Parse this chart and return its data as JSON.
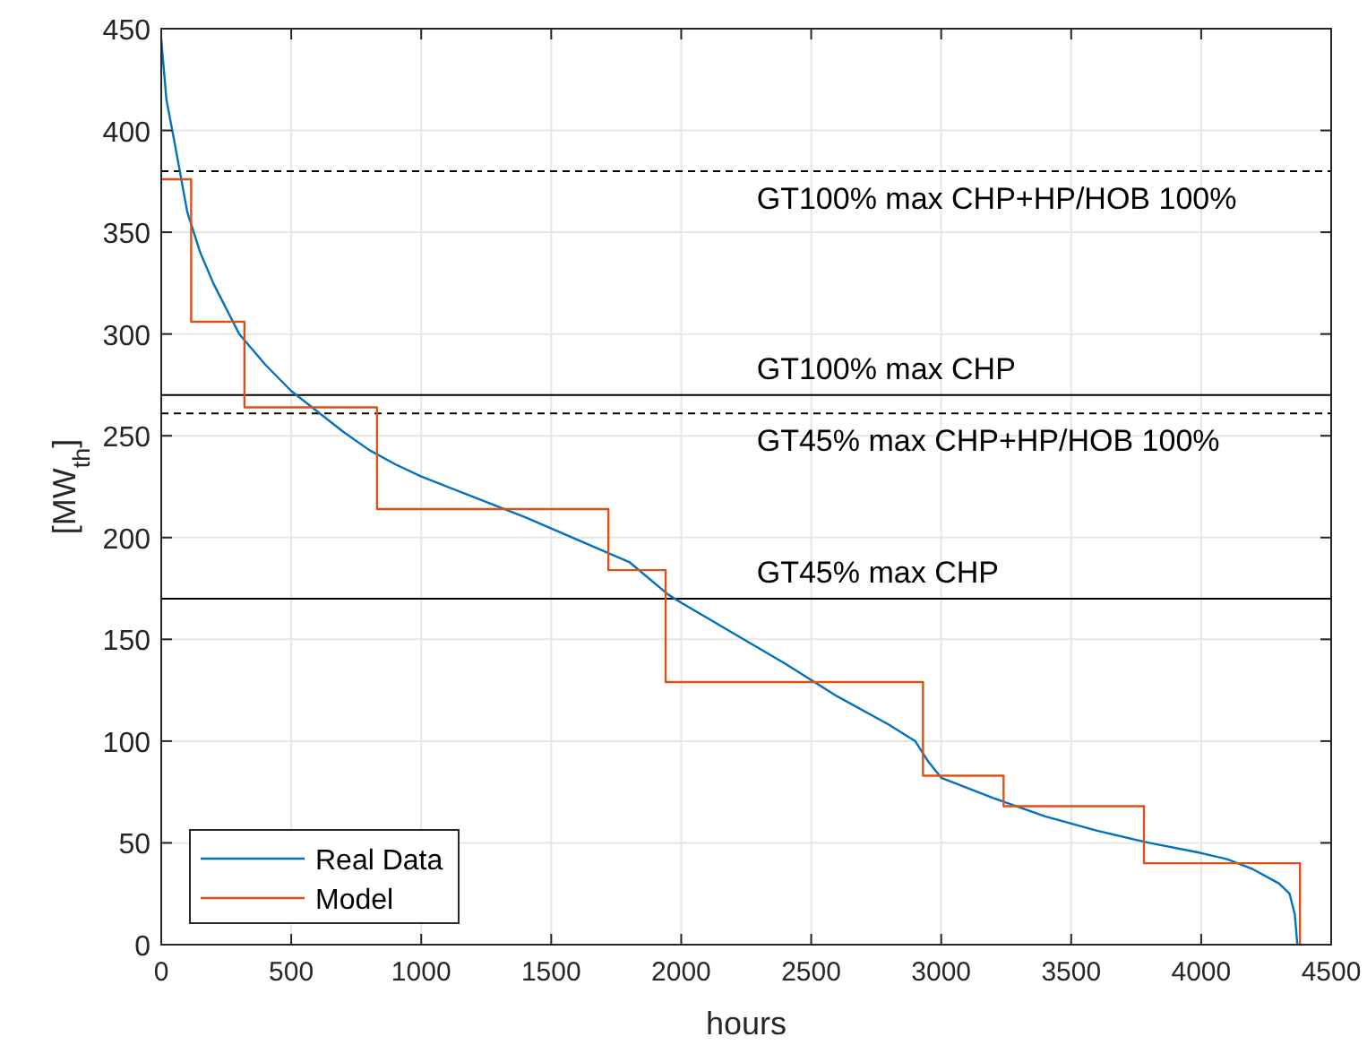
{
  "chart_data": {
    "type": "line",
    "xlabel": "hours",
    "ylabel": "[MW$_{th}$]",
    "xlim": [
      0,
      4500
    ],
    "xticks": [
      0,
      500,
      1000,
      1500,
      2000,
      2500,
      3000,
      3500,
      4000,
      4500
    ],
    "ylim": [
      0,
      450
    ],
    "yticks": [
      0,
      50,
      100,
      150,
      200,
      250,
      300,
      350,
      400,
      450
    ],
    "grid": true,
    "legend": "bottom left",
    "series": [
      {
        "name": "Real Data",
        "type": "line",
        "color": "#0072bd",
        "x": [
          0,
          20,
          50,
          100,
          150,
          200,
          300,
          400,
          500,
          600,
          700,
          800,
          900,
          1000,
          1200,
          1400,
          1600,
          1800,
          1950,
          2000,
          2200,
          2400,
          2600,
          2800,
          2900,
          2950,
          3000,
          3200,
          3400,
          3600,
          3800,
          4000,
          4100,
          4200,
          4300,
          4340,
          4360,
          4370
        ],
        "values": [
          445,
          415,
          395,
          360,
          340,
          325,
          300,
          285,
          272,
          262,
          252,
          243,
          236,
          230,
          220,
          210,
          199,
          188,
          172,
          168,
          153,
          138,
          122,
          108,
          100,
          90,
          82,
          72,
          63,
          56,
          50,
          45,
          42,
          37,
          30,
          25,
          15,
          0
        ]
      },
      {
        "name": "Model",
        "type": "step",
        "color": "#d95319",
        "x": [
          0,
          115,
          320,
          830,
          1720,
          1940,
          2930,
          3240,
          3780,
          4380,
          4380
        ],
        "values": [
          376,
          306,
          264,
          214,
          184,
          129,
          83,
          68,
          40,
          40,
          0
        ]
      }
    ],
    "ref_lines": [
      {
        "axis": "y",
        "value": 380,
        "label": "GT100% max CHP+HP/HOB 100%",
        "line_style": "dashed",
        "color": "#000000"
      },
      {
        "axis": "y",
        "value": 270,
        "label": "GT100% max CHP",
        "line_style": "solid",
        "color": "#000000"
      },
      {
        "axis": "y",
        "value": 261,
        "label": "GT45% max CHP+HP/HOB 100%",
        "line_style": "dashed",
        "color": "#000000"
      },
      {
        "axis": "y",
        "value": 170,
        "label": "GT45% max CHP",
        "line_style": "solid",
        "color": "#000000"
      }
    ]
  }
}
